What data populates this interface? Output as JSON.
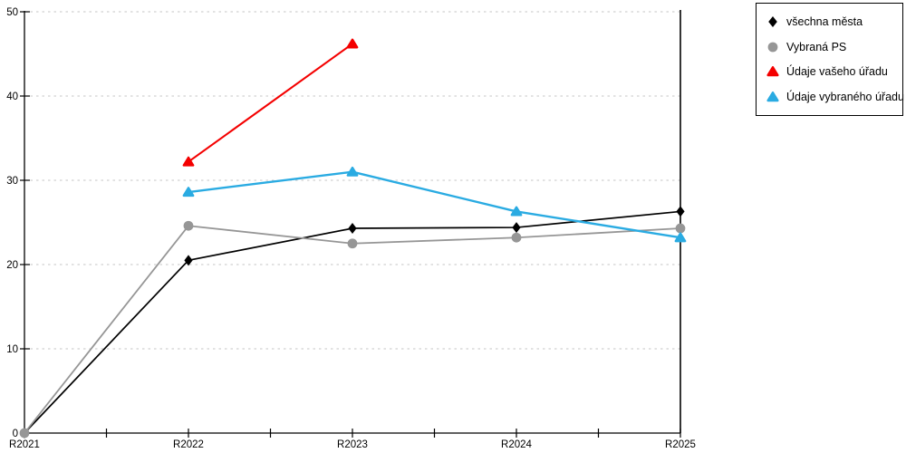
{
  "chart_data": {
    "type": "line",
    "categories": [
      "R2021",
      "R2022",
      "R2023",
      "R2024",
      "R2025"
    ],
    "series": [
      {
        "name": "všechna města",
        "color": "#000000",
        "marker": "diamond",
        "line_width": 1.7,
        "values": [
          0,
          20.5,
          24.3,
          24.4,
          26.3
        ]
      },
      {
        "name": "Vybraná PS",
        "color": "#969696",
        "marker": "circle",
        "line_width": 1.8,
        "values": [
          0,
          24.6,
          22.5,
          23.2,
          24.3
        ]
      },
      {
        "name": "Údaje vašeho úřadu",
        "color": "#f40000",
        "marker": "triangle",
        "line_width": 2.1,
        "values": [
          null,
          32.2,
          46.2,
          null,
          null
        ]
      },
      {
        "name": "Údaje vybraného úřadu",
        "color": "#2aabe2",
        "marker": "triangle",
        "line_width": 2.4,
        "values": [
          null,
          28.6,
          31.0,
          26.3,
          23.2
        ]
      }
    ],
    "y_ticks": [
      0,
      10,
      20,
      30,
      40,
      50
    ],
    "ylim": [
      0,
      50
    ],
    "xlabel": "",
    "ylabel": "",
    "title": "",
    "grid": "horizontal-dotted",
    "gridline_color": "#c4c4c4",
    "axis_color": "#000000",
    "tick_label_color": "#000000",
    "legend_position": "top-right"
  }
}
